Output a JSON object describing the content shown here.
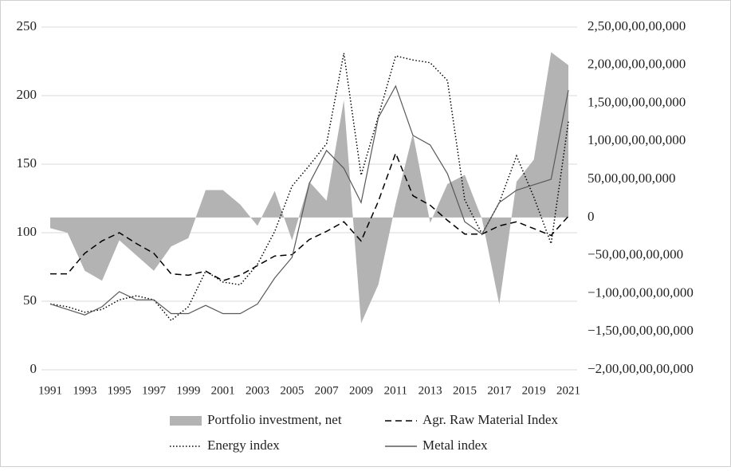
{
  "chart_data": {
    "type": "line",
    "categories": [
      "1991",
      null,
      "1993",
      null,
      "1995",
      null,
      "1997",
      null,
      "1999",
      null,
      "2001",
      null,
      "2003",
      null,
      "2005",
      null,
      "2007",
      null,
      "2009",
      null,
      "2011",
      null,
      "2013",
      null,
      "2015",
      null,
      "2017",
      null,
      "2019",
      null,
      "2021"
    ],
    "series": [
      {
        "name": "Portfolio investment, net",
        "mark": "area",
        "axis": "y2",
        "color": "#b3b3b3",
        "values": [
          -14000000000,
          -20000000000,
          -70000000000,
          -83000000000,
          -30000000000,
          -50000000000,
          -70000000000,
          -38000000000,
          -27000000000,
          36000000000,
          36000000000,
          17000000000,
          -11000000000,
          35000000000,
          -30000000000,
          47000000000,
          22000000000,
          154000000000,
          -139000000000,
          -88000000000,
          18000000000,
          110000000000,
          -7000000000,
          44000000000,
          56000000000,
          -2000000000,
          -114000000000,
          47000000000,
          76000000000,
          217000000000,
          200000000000
        ]
      },
      {
        "name": "Agr. Raw Material Index",
        "mark": "line",
        "dash": "dashed",
        "color": "#000000",
        "values": [
          70,
          70,
          85,
          94,
          100,
          92,
          85,
          70,
          69,
          72,
          65,
          69,
          76,
          83,
          84,
          95,
          101,
          108,
          94,
          123,
          158,
          127,
          120,
          109,
          99,
          99,
          105,
          108,
          103,
          98,
          112
        ]
      },
      {
        "name": "Energy index",
        "mark": "line",
        "dash": "dotted",
        "color": "#000000",
        "values": [
          48,
          46,
          42,
          44,
          51,
          54,
          51,
          36,
          46,
          72,
          64,
          62,
          77,
          101,
          134,
          149,
          165,
          231,
          142,
          185,
          229,
          226,
          224,
          211,
          124,
          99,
          122,
          156,
          126,
          92,
          181
        ]
      },
      {
        "name": "Metal index",
        "mark": "line",
        "dash": "solid",
        "color": "#595959",
        "values": [
          48,
          44,
          40,
          46,
          57,
          51,
          51,
          41,
          41,
          47,
          41,
          41,
          48,
          67,
          82,
          136,
          160,
          147,
          122,
          184,
          207,
          171,
          164,
          143,
          108,
          99,
          122,
          131,
          135,
          139,
          204
        ]
      }
    ],
    "ylim": [
      0,
      250
    ],
    "yticks": [
      0,
      50,
      100,
      150,
      200,
      250
    ],
    "y2lim": [
      -200000000000,
      250000000000
    ],
    "y2ticks": [
      {
        "value": -200000000000,
        "label": "−2,00,00,00,00,000"
      },
      {
        "value": -150000000000,
        "label": "−1,50,00,00,00,000"
      },
      {
        "value": -100000000000,
        "label": "−1,00,00,00,00,000"
      },
      {
        "value": -50000000000,
        "label": "−50,00,00,00,000"
      },
      0,
      {
        "value": 50000000000,
        "label": "50,00,00,00,000"
      },
      {
        "value": 100000000000,
        "label": "1,00,00,00,00,000"
      },
      {
        "value": 150000000000,
        "label": "1,50,00,00,00,000"
      },
      {
        "value": 200000000000,
        "label": "2,00,00,00,00,000"
      },
      {
        "value": 250000000000,
        "label": "2,50,00,00,00,000"
      }
    ],
    "grid": true,
    "legend": "bottom"
  }
}
